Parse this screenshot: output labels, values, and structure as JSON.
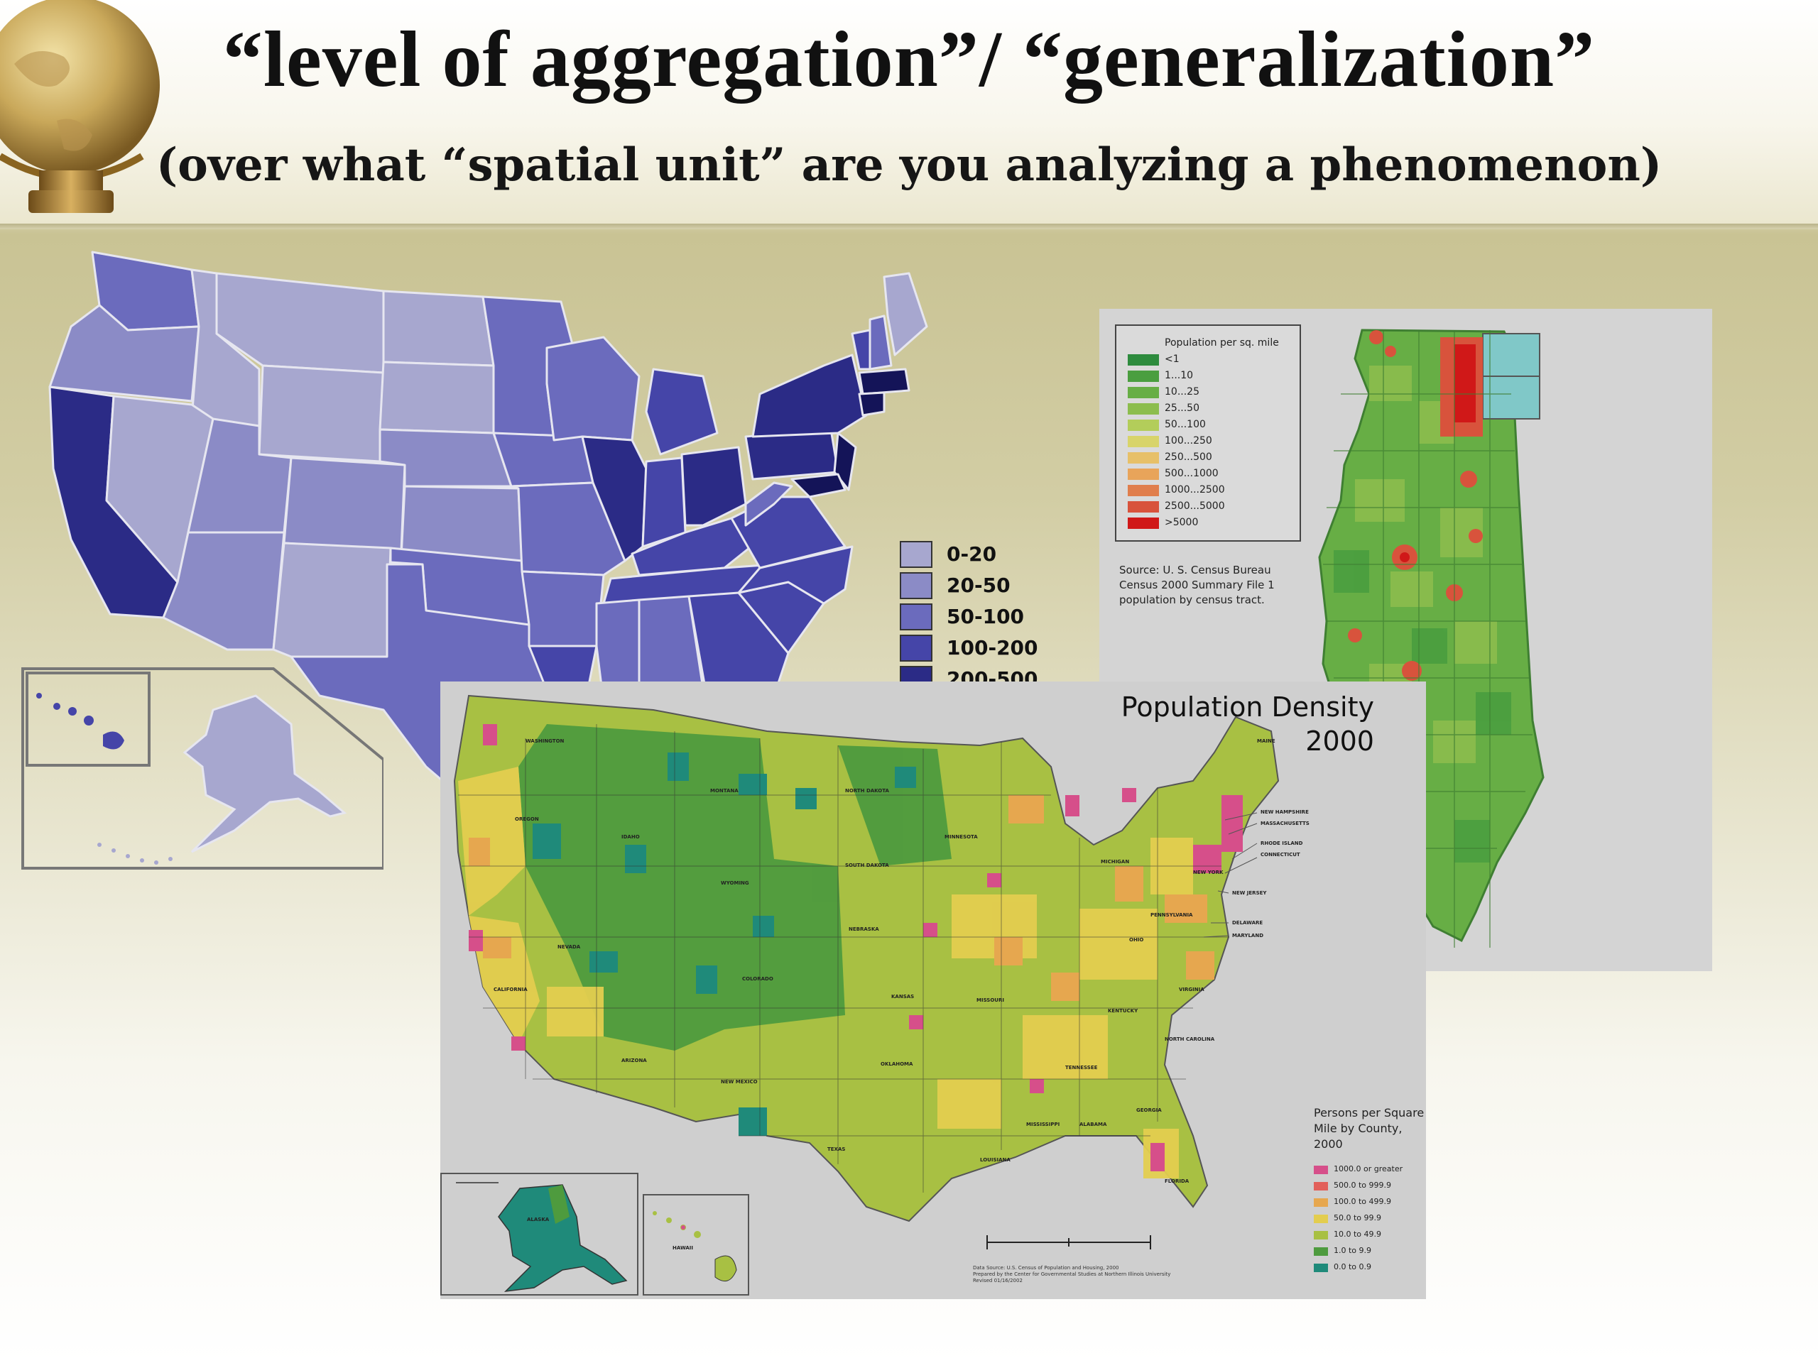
{
  "slide": {
    "title": "“level of aggregation”/ “generalization”",
    "subtitle": "(over  what “spatial unit” are you analyzing a phenomenon)"
  },
  "map_state": {
    "legend": [
      {
        "label": "0-20",
        "color": "#a7a7cf"
      },
      {
        "label": "20-50",
        "color": "#8b8bc6"
      },
      {
        "label": "50-100",
        "color": "#6b6bbd"
      },
      {
        "label": "100-200",
        "color": "#4545a8"
      },
      {
        "label": "200-500",
        "color": "#2b2b86"
      }
    ]
  },
  "map_illinois": {
    "legend_title": "Population per sq. mile",
    "legend": [
      {
        "label": "<1",
        "color": "#2e8b3e"
      },
      {
        "label": "1...10",
        "color": "#4a9e3f"
      },
      {
        "label": "10...25",
        "color": "#67ae45"
      },
      {
        "label": "25...50",
        "color": "#8cbd4d"
      },
      {
        "label": "50...100",
        "color": "#b3cd5a"
      },
      {
        "label": "100...250",
        "color": "#d8d46a"
      },
      {
        "label": "250...500",
        "color": "#e7c068"
      },
      {
        "label": "500...1000",
        "color": "#e8a45a"
      },
      {
        "label": "1000...2500",
        "color": "#e07e4c"
      },
      {
        "label": "2500...5000",
        "color": "#d8533c"
      },
      {
        "label": ">5000",
        "color": "#d01818"
      }
    ],
    "source_lines": [
      "Source: U. S. Census Bureau",
      "Census 2000 Summary File 1",
      "population by census tract."
    ]
  },
  "map_us_county": {
    "title_line1": "Population Density",
    "title_line2": "2000",
    "legend_title_line1": "Persons per Square",
    "legend_title_line2": "Mile by County, 2000",
    "legend": [
      {
        "label": "1000.0 or greater",
        "color": "#d64f8a"
      },
      {
        "label": "500.0 to 999.9",
        "color": "#e2605a"
      },
      {
        "label": "100.0 to 499.9",
        "color": "#e6a74f"
      },
      {
        "label": "50.0 to 99.9",
        "color": "#e3cd4f"
      },
      {
        "label": "10.0 to 49.9",
        "color": "#a8c043"
      },
      {
        "label": "1.0 to 9.9",
        "color": "#4e9b3e"
      },
      {
        "label": "0.0 to 0.9",
        "color": "#1f8a7a"
      }
    ],
    "state_labels": [
      "WASHINGTON",
      "MONTANA",
      "NORTH DAKOTA",
      "OREGON",
      "IDAHO",
      "MINNESOTA",
      "WYOMING",
      "SOUTH DAKOTA",
      "NEVADA",
      "NEBRASKA",
      "CALIFORNIA",
      "COLORADO",
      "KANSAS",
      "MISSOURI",
      "ARIZONA",
      "NEW MEXICO",
      "OKLAHOMA",
      "TEXAS",
      "LOUISIANA",
      "MISSISSIPPI",
      "ALABAMA",
      "GEORGIA",
      "FLORIDA",
      "TENNESSEE",
      "KENTUCKY",
      "OHIO",
      "MICHIGAN",
      "NEW YORK",
      "PENNSYLVANIA",
      "NORTH CAROLINA",
      "VIRGINIA",
      "MAINE",
      "ALASKA",
      "HAWAII"
    ],
    "east_callouts": [
      "NEW HAMPSHIRE",
      "MASSACHUSETTS",
      "RHODE ISLAND",
      "CONNECTICUT",
      "NEW JERSEY",
      "DELAWARE",
      "MARYLAND"
    ],
    "source_lines": [
      "Data Source: U.S. Census of Population and Housing, 2000",
      "Prepared by the Center for Governmental Studies at Northern Illinois University",
      "Revised 01/16/2002"
    ]
  }
}
